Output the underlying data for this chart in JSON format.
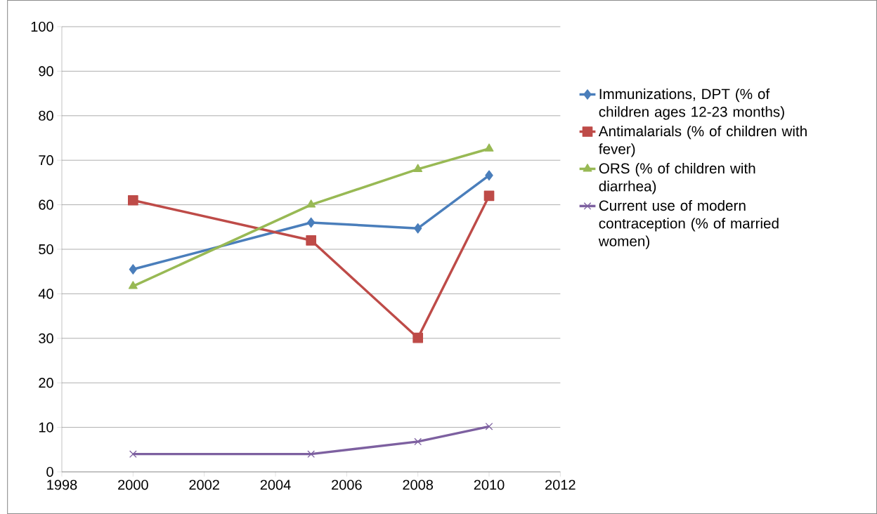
{
  "chart_data": {
    "type": "line",
    "x": [
      2000,
      2005,
      2008,
      2010
    ],
    "series": [
      {
        "name": "Immunizations, DPT (% of children ages 12-23 months)",
        "color": "#4a7ebb",
        "marker": "diamond",
        "values": [
          45.5,
          56,
          54.7,
          66.6
        ]
      },
      {
        "name": "Antimalarials (% of children with fever)",
        "color": "#be4b48",
        "marker": "square",
        "values": [
          61,
          52,
          30.1,
          62
        ]
      },
      {
        "name": "ORS (% of children with diarrhea)",
        "color": "#98b954",
        "marker": "triangle",
        "values": [
          41.7,
          60,
          68,
          72.6
        ]
      },
      {
        "name": "Current use of modern contraception (% of married women)",
        "color": "#7d60a0",
        "marker": "cross",
        "values": [
          4,
          4,
          6.8,
          10.2
        ]
      }
    ],
    "xlim": [
      1998,
      2012
    ],
    "xticks": [
      1998,
      2000,
      2002,
      2004,
      2006,
      2008,
      2010,
      2012
    ],
    "ylim": [
      0,
      100
    ],
    "yticks": [
      0,
      10,
      20,
      30,
      40,
      50,
      60,
      70,
      80,
      90,
      100
    ],
    "grid": "y",
    "legend": "right",
    "line_style": "solid"
  }
}
